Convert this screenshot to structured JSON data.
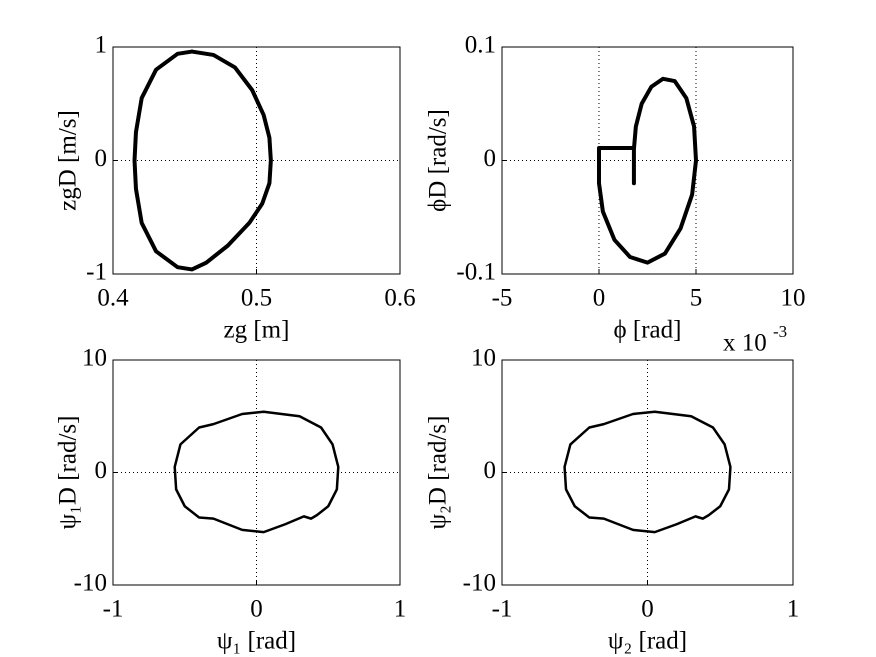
{
  "chart_data": [
    {
      "type": "line",
      "xlabel": "zg [m]",
      "ylabel": "zgD [m/s]",
      "xlim": [
        0.4,
        0.6
      ],
      "ylim": [
        -1,
        1
      ],
      "xticks": [
        0.4,
        0.5,
        0.6
      ],
      "yticks": [
        -1,
        0,
        1
      ],
      "grid": true,
      "series": [
        {
          "color": "#000000",
          "x": [
            0.455,
            0.47,
            0.485,
            0.497,
            0.505,
            0.509,
            0.51,
            0.509,
            0.504,
            0.495,
            0.48,
            0.465,
            0.455,
            0.445,
            0.43,
            0.42,
            0.416,
            0.415,
            0.416,
            0.42,
            0.43,
            0.445,
            0.455
          ],
          "values": [
            0.96,
            0.93,
            0.82,
            0.62,
            0.4,
            0.2,
            0,
            -0.2,
            -0.38,
            -0.55,
            -0.75,
            -0.9,
            -0.96,
            -0.94,
            -0.8,
            -0.55,
            -0.25,
            0,
            0.25,
            0.55,
            0.8,
            0.94,
            0.96
          ]
        }
      ]
    },
    {
      "type": "line",
      "xlabel": "ϕ [rad]",
      "ylabel": "ϕD [rad/s]",
      "x_multiplier": "x 10",
      "x_multiplier_exponent": "-3",
      "xlim": [
        -5,
        10
      ],
      "ylim": [
        -0.1,
        0.1
      ],
      "xticks": [
        -5,
        0,
        5,
        10
      ],
      "yticks": [
        -0.1,
        0,
        0.1
      ],
      "grid": true,
      "series": [
        {
          "color": "#000000",
          "x": [
            1.8,
            1.8,
            0,
            0,
            0.2,
            0.8,
            1.6,
            2.5,
            3.4,
            4.2,
            4.8,
            5,
            4.9,
            4.5,
            3.9,
            3.3,
            2.7,
            2.2,
            1.9,
            1.8,
            1.8
          ],
          "values": [
            -0.02,
            0.011,
            0.011,
            -0.02,
            -0.045,
            -0.07,
            -0.085,
            -0.09,
            -0.082,
            -0.06,
            -0.03,
            0,
            0.03,
            0.055,
            0.07,
            0.072,
            0.065,
            0.05,
            0.03,
            0.01,
            -0.02
          ]
        }
      ]
    },
    {
      "type": "line",
      "xlabel": "ψ₁ [rad]",
      "ylabel": "ψ₁D [rad/s]",
      "xlim": [
        -1,
        1
      ],
      "ylim": [
        -10,
        10
      ],
      "xticks": [
        -1,
        0,
        1
      ],
      "yticks": [
        -10,
        0,
        10
      ],
      "grid": true,
      "series": [
        {
          "color": "#000000",
          "x": [
            0.05,
            0.3,
            0.45,
            0.53,
            0.57,
            0.56,
            0.5,
            0.42,
            0.38,
            0.33,
            0.2,
            0.05,
            -0.1,
            -0.3,
            -0.4,
            -0.5,
            -0.56,
            -0.57,
            -0.53,
            -0.4,
            -0.3,
            -0.1,
            0.05
          ],
          "values": [
            5.4,
            5.0,
            4.0,
            2.5,
            0.5,
            -1.5,
            -3.0,
            -3.8,
            -4.1,
            -3.9,
            -4.6,
            -5.3,
            -5.1,
            -4.1,
            -4.0,
            -3.0,
            -1.5,
            0.5,
            2.5,
            4.0,
            4.3,
            5.2,
            5.4
          ]
        }
      ]
    },
    {
      "type": "line",
      "xlabel": "ψ₂ [rad]",
      "ylabel": "ψ₂D [rad/s]",
      "xlim": [
        -1,
        1
      ],
      "ylim": [
        -10,
        10
      ],
      "xticks": [
        -1,
        0,
        1
      ],
      "yticks": [
        -10,
        0,
        10
      ],
      "grid": true,
      "series": [
        {
          "color": "#000000",
          "x": [
            0.05,
            0.3,
            0.45,
            0.53,
            0.57,
            0.56,
            0.5,
            0.42,
            0.38,
            0.33,
            0.2,
            0.05,
            -0.1,
            -0.3,
            -0.4,
            -0.5,
            -0.56,
            -0.57,
            -0.53,
            -0.4,
            -0.3,
            -0.1,
            0.05
          ],
          "values": [
            5.4,
            5.0,
            4.0,
            2.5,
            0.5,
            -1.5,
            -3.0,
            -3.8,
            -4.1,
            -3.9,
            -4.6,
            -5.3,
            -5.1,
            -4.1,
            -4.0,
            -3.0,
            -1.5,
            0.5,
            2.5,
            4.0,
            4.3,
            5.2,
            5.4
          ]
        }
      ]
    }
  ]
}
